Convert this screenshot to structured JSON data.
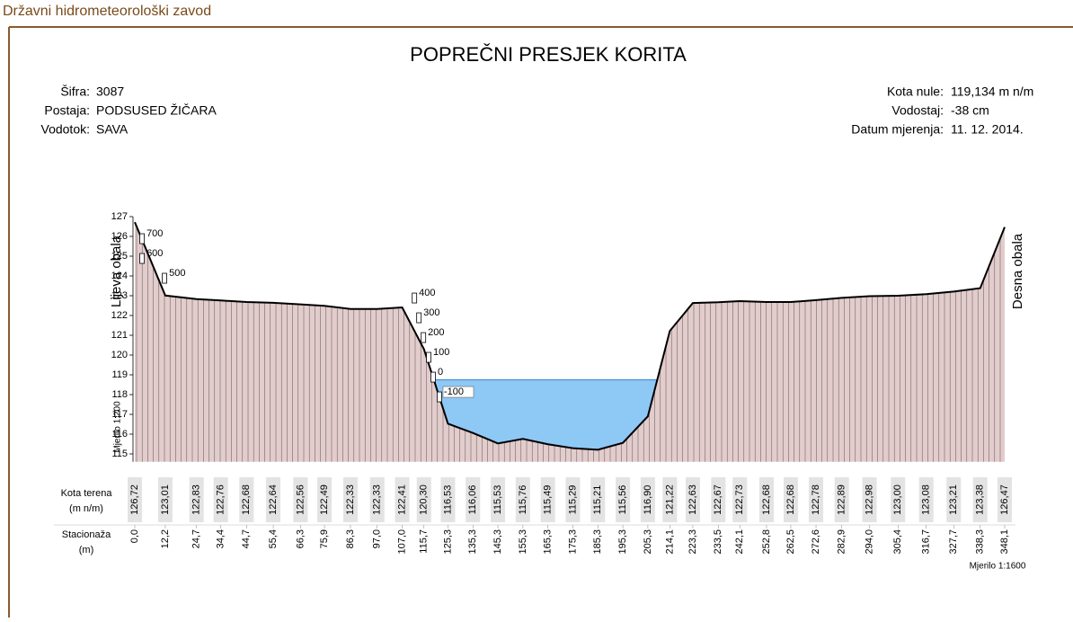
{
  "header": "Državni hidrometeorološki zavod",
  "chart_data": {
    "type": "cross-section",
    "title": "POPREČNI PRESJEK KORITA",
    "info_left": [
      {
        "label": "Šifra:",
        "value": "3087"
      },
      {
        "label": "Postaja:",
        "value": "PODSUSED ŽIČARA"
      },
      {
        "label": "Vodotok:",
        "value": "SAVA"
      }
    ],
    "info_right": [
      {
        "label": "Kota nule:",
        "value": "119,134 m n/m"
      },
      {
        "label": "Vodostaj:",
        "value": "-38 cm"
      },
      {
        "label": "Datum mjerenja:",
        "value": "11. 12. 2014."
      }
    ],
    "left_bank_label": "Lijeva obala",
    "right_bank_label": "Desna obala",
    "vertical_scale": "Mjerilo 1:200",
    "horizontal_scale": "Mjerilo 1:1600",
    "table_rows": [
      {
        "label": "Kota terena",
        "unit": "(m n/m)"
      },
      {
        "label": "Stacionaža",
        "unit": "(m)"
      }
    ],
    "x": [
      0.0,
      12.2,
      24.7,
      34.4,
      44.7,
      55.4,
      66.3,
      75.9,
      86.3,
      97.0,
      107.0,
      115.7,
      125.3,
      135.3,
      145.3,
      155.3,
      165.3,
      175.3,
      185.3,
      195.3,
      205.3,
      214.1,
      223.3,
      233.5,
      242.1,
      252.8,
      262.5,
      272.6,
      282.9,
      294.0,
      305.4,
      316.7,
      327.7,
      338.3,
      348.1
    ],
    "xticks": [
      {
        "value": 0.0,
        "label": "0,0"
      },
      {
        "value": 12.2,
        "label": "12,2"
      },
      {
        "value": 24.7,
        "label": "24,7"
      },
      {
        "value": 34.4,
        "label": "34,4"
      },
      {
        "value": 44.7,
        "label": "44,7"
      },
      {
        "value": 55.4,
        "label": "55,4"
      },
      {
        "value": 66.3,
        "label": "66,3"
      },
      {
        "value": 75.9,
        "label": "75,9"
      },
      {
        "value": 86.3,
        "label": "86,3"
      },
      {
        "value": 97.0,
        "label": "97,0"
      },
      {
        "value": 107.0,
        "label": "107,0"
      },
      {
        "value": 115.7,
        "label": "115,7"
      },
      {
        "value": 125.3,
        "label": "125,3"
      },
      {
        "value": 135.3,
        "label": "135,3"
      },
      {
        "value": 145.3,
        "label": "145,3"
      },
      {
        "value": 155.3,
        "label": "155,3"
      },
      {
        "value": 165.3,
        "label": "165,3"
      },
      {
        "value": 175.3,
        "label": "175,3"
      },
      {
        "value": 185.3,
        "label": "185,3"
      },
      {
        "value": 195.3,
        "label": "195,3"
      },
      {
        "value": 205.3,
        "label": "205,3"
      },
      {
        "value": 214.1,
        "label": "214,1"
      },
      {
        "value": 223.3,
        "label": "223,3"
      },
      {
        "value": 233.5,
        "label": "233,5"
      },
      {
        "value": 242.1,
        "label": "242,1"
      },
      {
        "value": 252.8,
        "label": "252,8"
      },
      {
        "value": 262.5,
        "label": "262,5"
      },
      {
        "value": 272.6,
        "label": "272,6"
      },
      {
        "value": 282.9,
        "label": "282,9"
      },
      {
        "value": 294.0,
        "label": "294,0"
      },
      {
        "value": 305.4,
        "label": "305,4"
      },
      {
        "value": 316.7,
        "label": "316,7"
      },
      {
        "value": 327.7,
        "label": "327,7"
      },
      {
        "value": 338.3,
        "label": "338,3"
      },
      {
        "value": 348.1,
        "label": "348,1"
      }
    ],
    "ground": {
      "color": "#e3cccc",
      "values": [
        126.72,
        123.01,
        122.83,
        122.76,
        122.68,
        122.64,
        122.56,
        122.49,
        122.33,
        122.33,
        122.41,
        120.3,
        116.53,
        116.06,
        115.53,
        115.76,
        115.49,
        115.29,
        115.21,
        115.56,
        116.9,
        121.22,
        122.63,
        122.67,
        122.73,
        122.68,
        122.68,
        122.78,
        122.89,
        122.98,
        123.0,
        123.08,
        123.21,
        123.38,
        126.47
      ],
      "value_labels": [
        "126,72",
        "123,01",
        "122,83",
        "122,76",
        "122,68",
        "122,64",
        "122,56",
        "122,49",
        "122,33",
        "122,33",
        "122,41",
        "120,30",
        "116,53",
        "116,06",
        "115,53",
        "115,76",
        "115,49",
        "115,29",
        "115,21",
        "115,56",
        "116,90",
        "121,22",
        "122,63",
        "122,67",
        "122,73",
        "122,68",
        "122,68",
        "122,78",
        "122,89",
        "122,98",
        "123,00",
        "123,08",
        "123,21",
        "123,38",
        "126,47"
      ]
    },
    "water": {
      "level": 118.75,
      "color": "#8ec8f5"
    },
    "gauges": {
      "zero": 119.134,
      "values": [
        700,
        600,
        500,
        400,
        300,
        200,
        100,
        0,
        -100
      ],
      "x": [
        2.9,
        2.9,
        11.9,
        111.9,
        113.7,
        115.5,
        117.6,
        119.4,
        121.9
      ]
    },
    "xlim": [
      0,
      348.1
    ],
    "ylim": [
      114.6,
      127
    ],
    "yticks": [
      115,
      116,
      117,
      118,
      119,
      120,
      121,
      122,
      123,
      124,
      125,
      126,
      127
    ]
  }
}
